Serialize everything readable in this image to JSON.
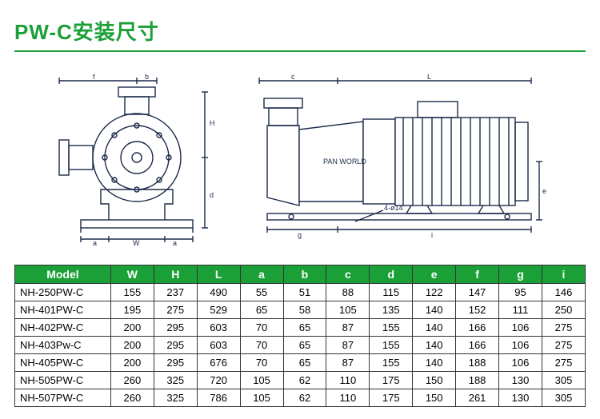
{
  "title": {
    "text": "PW-C安装尺寸",
    "color": "#1aa037",
    "fontsize": 26
  },
  "rule_color": "#1aa037",
  "diagram": {
    "label_text": "PAN WORLD",
    "base_bolt_label": "4-ø14",
    "dim_labels": [
      "W",
      "H",
      "L",
      "a",
      "b",
      "c",
      "d",
      "e",
      "f",
      "g",
      "i"
    ],
    "stroke_color": "#1b2a4a",
    "fill_color": "#ffffff"
  },
  "table": {
    "header_bg": "#1aa037",
    "header_fg": "#ffffff",
    "border_color": "#333333",
    "cell_fontsize": 13,
    "columns": [
      "Model",
      "W",
      "H",
      "L",
      "a",
      "b",
      "c",
      "d",
      "e",
      "f",
      "g",
      "i"
    ],
    "rows": [
      [
        "NH-250PW-C",
        "155",
        "237",
        "490",
        "55",
        "51",
        "88",
        "115",
        "122",
        "147",
        "95",
        "146"
      ],
      [
        "NH-401PW-C",
        "195",
        "275",
        "529",
        "65",
        "58",
        "105",
        "135",
        "140",
        "152",
        "111",
        "250"
      ],
      [
        "NH-402PW-C",
        "200",
        "295",
        "603",
        "70",
        "65",
        "87",
        "155",
        "140",
        "166",
        "106",
        "275"
      ],
      [
        "NH-403Pw-C",
        "200",
        "295",
        "603",
        "70",
        "65",
        "87",
        "155",
        "140",
        "166",
        "106",
        "275"
      ],
      [
        "NH-405PW-C",
        "200",
        "295",
        "676",
        "70",
        "65",
        "87",
        "155",
        "140",
        "188",
        "106",
        "275"
      ],
      [
        "NH-505PW-C",
        "260",
        "325",
        "720",
        "105",
        "62",
        "110",
        "175",
        "150",
        "188",
        "130",
        "305"
      ],
      [
        "NH-507PW-C",
        "260",
        "325",
        "786",
        "105",
        "62",
        "110",
        "175",
        "150",
        "261",
        "130",
        "305"
      ]
    ]
  }
}
